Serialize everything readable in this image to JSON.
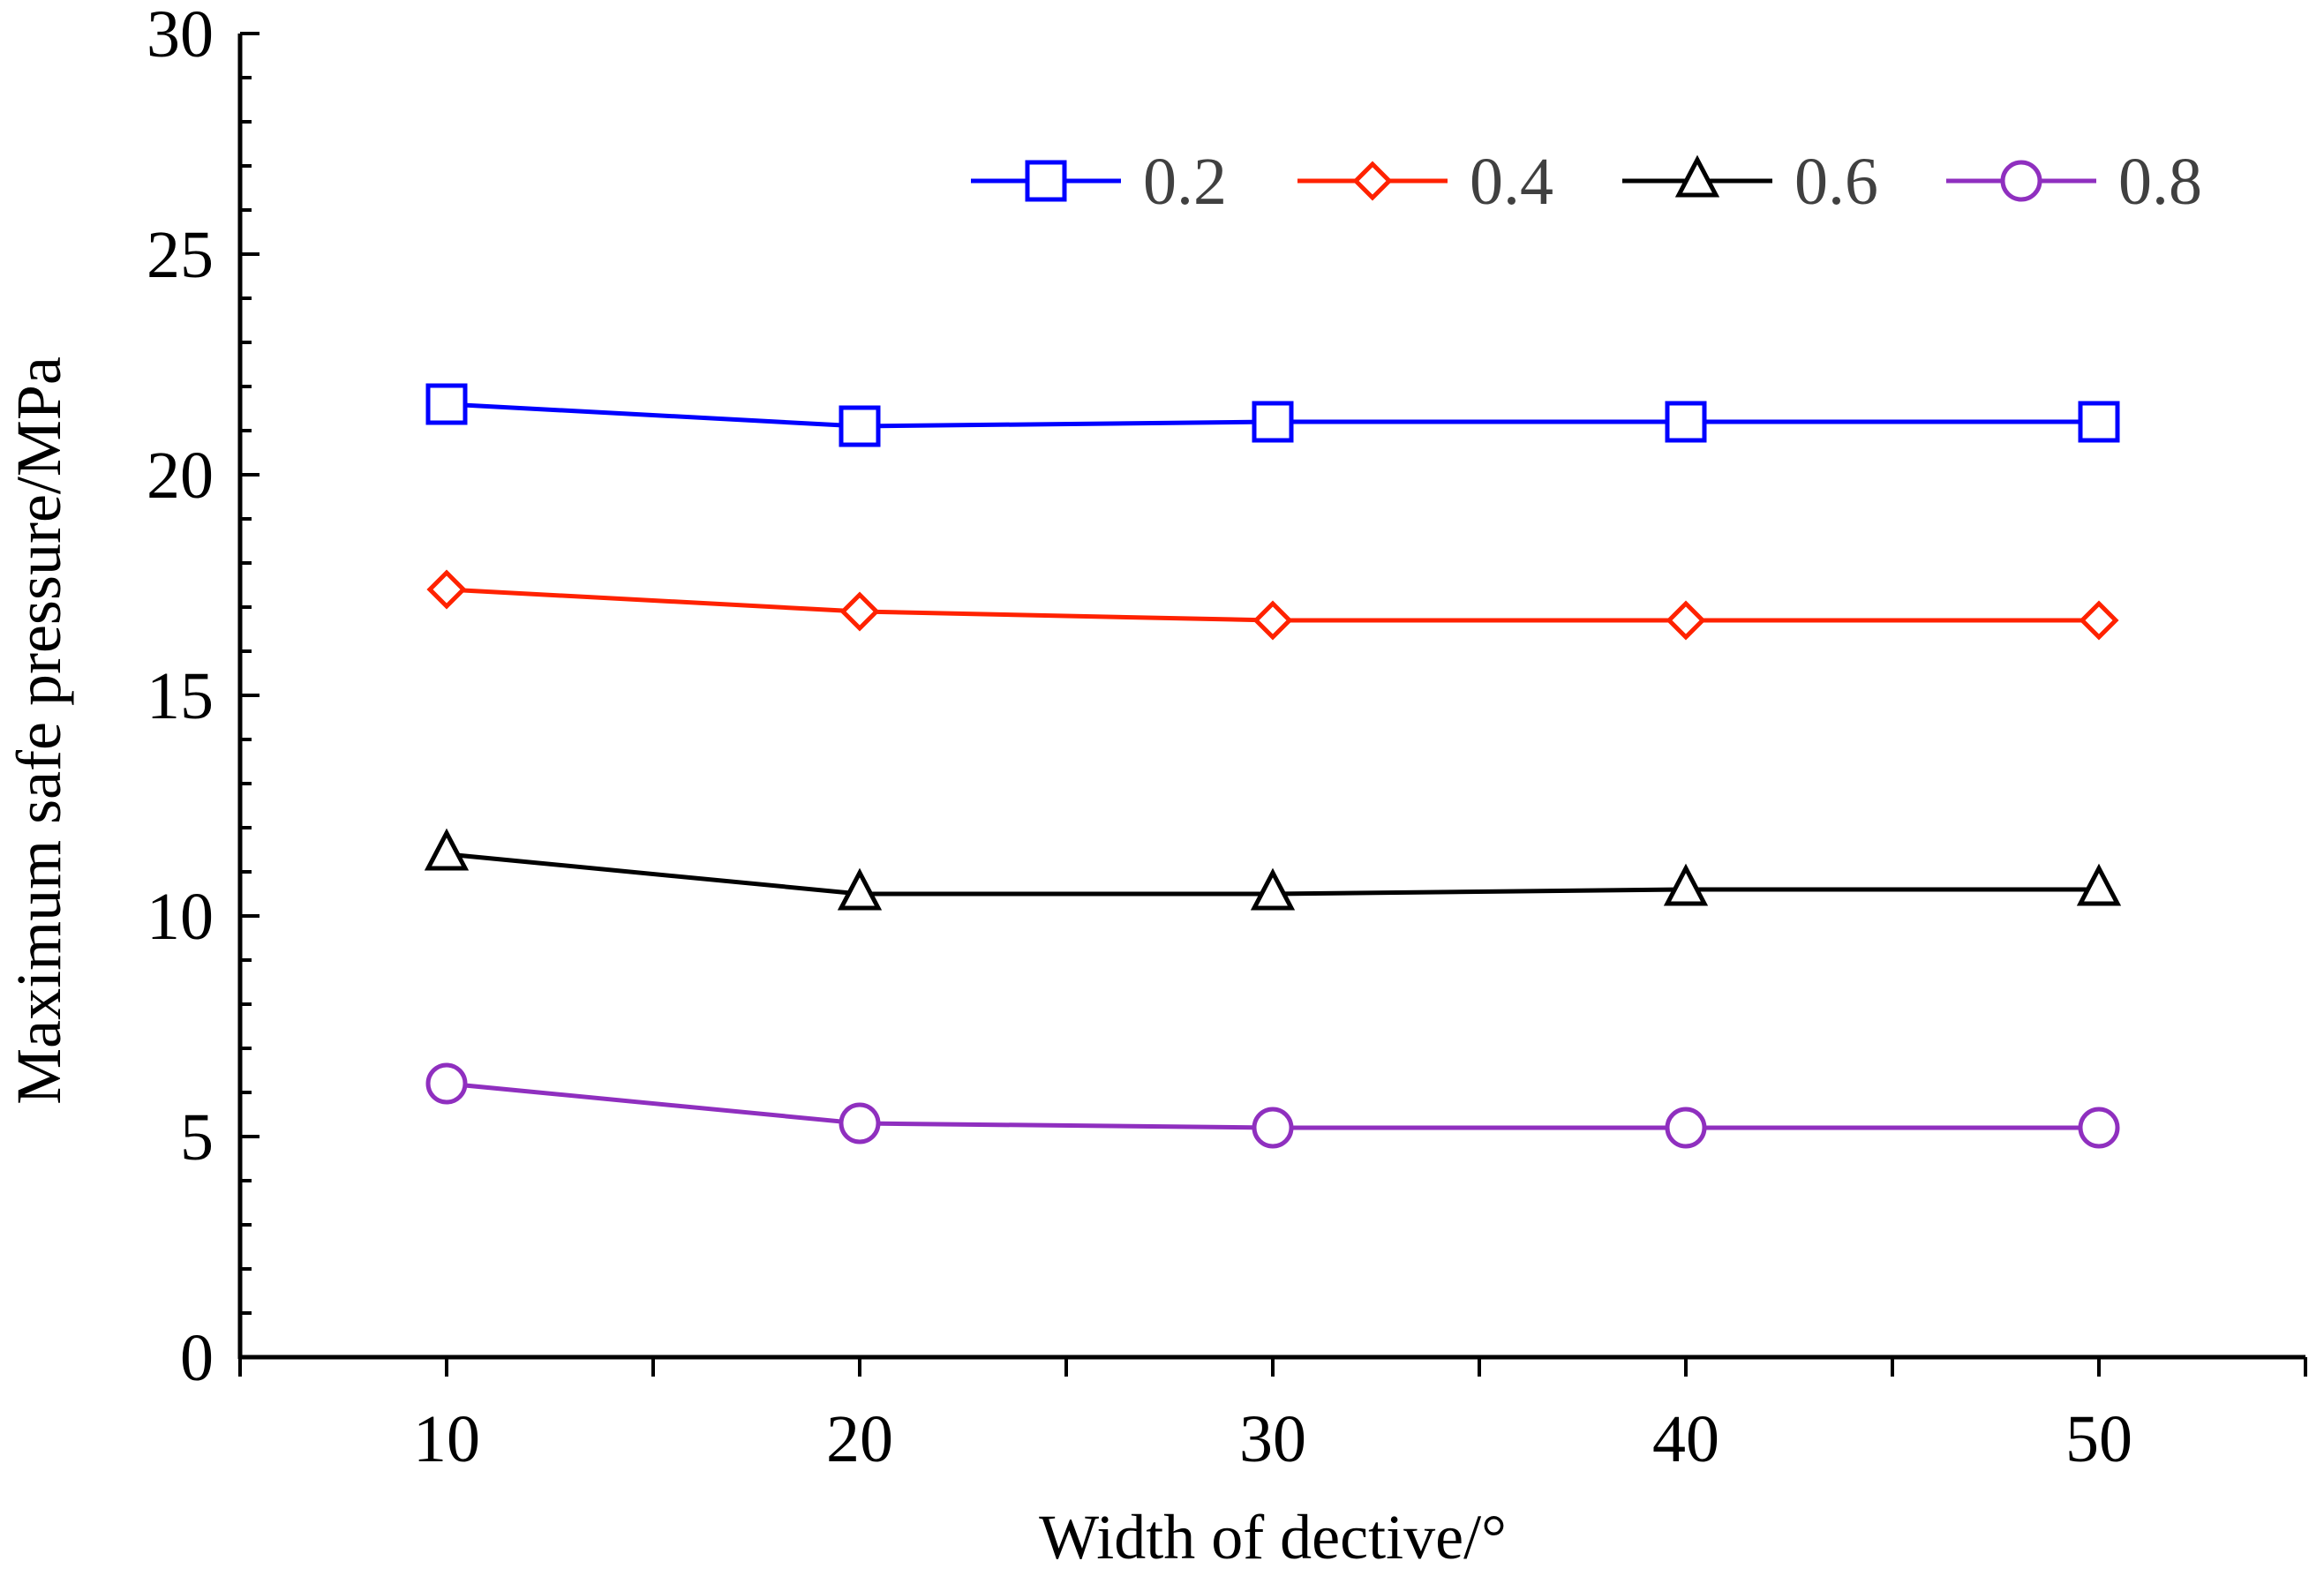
{
  "chart_data": {
    "type": "line",
    "title": "",
    "xlabel": "Width of dective/°",
    "ylabel": "Maximum safe pressure/MPa",
    "xlim": [
      5,
      55
    ],
    "ylim": [
      0,
      30
    ],
    "x_ticks": [
      "10",
      "20",
      "30",
      "40",
      "50"
    ],
    "y_ticks": [
      "0",
      "5",
      "10",
      "15",
      "20",
      "25",
      "30"
    ],
    "legend_position": "top-right",
    "grid": false,
    "x": [
      10,
      20,
      30,
      40,
      50
    ],
    "series": [
      {
        "name": "0.2",
        "color": "#0000ff",
        "marker": "square",
        "values": [
          21.6,
          21.1,
          21.2,
          21.2,
          21.2
        ]
      },
      {
        "name": "0.4",
        "color": "#ff2200",
        "marker": "diamond",
        "values": [
          17.4,
          16.9,
          16.7,
          16.7,
          16.7
        ]
      },
      {
        "name": "0.6",
        "color": "#000000",
        "marker": "triangle",
        "values": [
          11.4,
          10.5,
          10.5,
          10.6,
          10.6
        ]
      },
      {
        "name": "0.8",
        "color": "#8f2fbf",
        "marker": "circle",
        "values": [
          6.2,
          5.3,
          5.2,
          5.2,
          5.2
        ]
      }
    ]
  }
}
